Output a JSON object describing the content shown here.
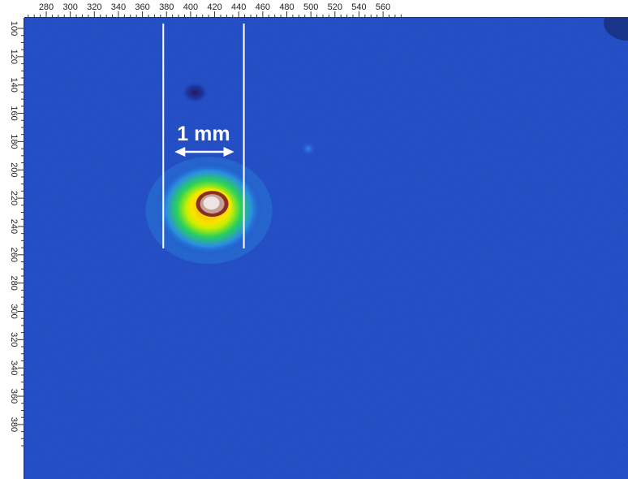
{
  "image": {
    "kind": "false-color beam profile camera image",
    "colormap": [
      "#0a1a6e",
      "#1846c8",
      "#2f8cf0",
      "#20d060",
      "#c8f000",
      "#ffe000",
      "#b03020",
      "#e8d8d8"
    ],
    "background_color": "#1a47c4"
  },
  "axes": {
    "x_ticks": [
      "280",
      "300",
      "320",
      "340",
      "360",
      "380",
      "400",
      "420",
      "440",
      "460",
      "480",
      "500",
      "520",
      "540",
      "560"
    ],
    "y_ticks": [
      "100",
      "120",
      "140",
      "160",
      "180",
      "200",
      "220",
      "240",
      "260",
      "280",
      "300",
      "320",
      "340",
      "360",
      "380"
    ]
  },
  "scale_bar": {
    "label": "1 mm",
    "x_from": 380,
    "x_to": 447
  },
  "spots": [
    {
      "name": "main-beam-spot",
      "x": 418,
      "y": 224,
      "type": "hot"
    },
    {
      "name": "dark-spot",
      "x": 395,
      "y": 155,
      "type": "dark"
    },
    {
      "name": "faint-spot",
      "x": 498,
      "y": 185,
      "type": "faint"
    }
  ]
}
